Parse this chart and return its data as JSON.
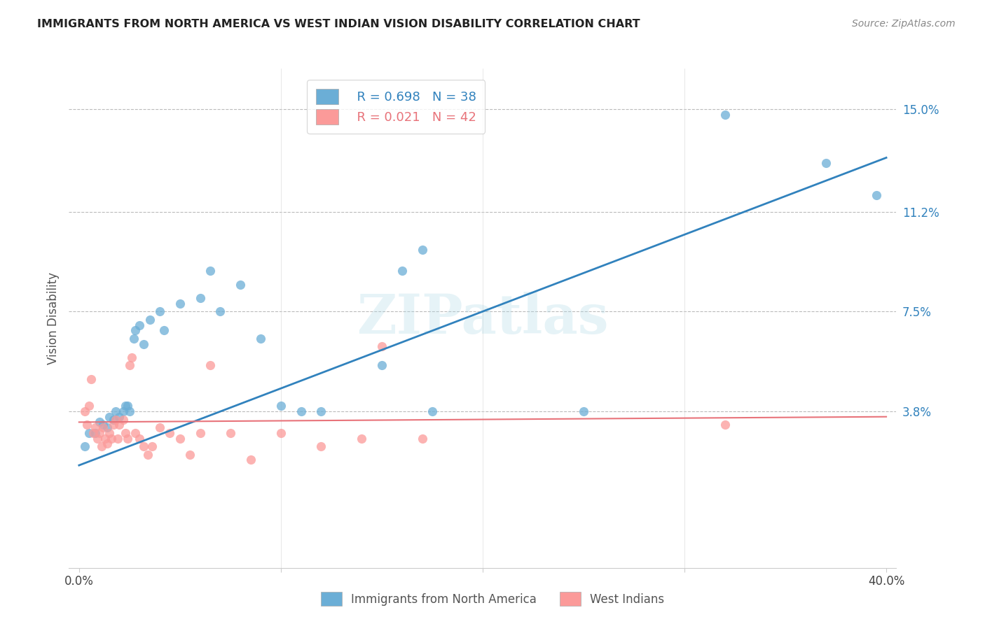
{
  "title": "IMMIGRANTS FROM NORTH AMERICA VS WEST INDIAN VISION DISABILITY CORRELATION CHART",
  "source": "Source: ZipAtlas.com",
  "xlabel_ticks": [
    "0.0%",
    "",
    "",
    "",
    "40.0%"
  ],
  "xlabel_vals": [
    0.0,
    0.1,
    0.2,
    0.3,
    0.4
  ],
  "ylabel_ticks_right": [
    "15.0%",
    "11.2%",
    "7.5%",
    "3.8%"
  ],
  "ylabel_vals_right": [
    0.15,
    0.112,
    0.075,
    0.038
  ],
  "ylabel_label": "Vision Disability",
  "legend_label1": "Immigrants from North America",
  "legend_label2": "West Indians",
  "legend_r1": "R = 0.698",
  "legend_n1": "N = 38",
  "legend_r2": "R = 0.021",
  "legend_n2": "N = 42",
  "color_blue": "#6baed6",
  "color_pink": "#fb9a99",
  "color_blue_line": "#3182bd",
  "color_pink_line": "#e8737a",
  "watermark": "ZIPatlas",
  "blue_x": [
    0.003,
    0.005,
    0.008,
    0.01,
    0.012,
    0.014,
    0.015,
    0.017,
    0.018,
    0.02,
    0.022,
    0.023,
    0.024,
    0.025,
    0.027,
    0.028,
    0.03,
    0.032,
    0.035,
    0.04,
    0.042,
    0.05,
    0.06,
    0.065,
    0.07,
    0.08,
    0.09,
    0.1,
    0.11,
    0.12,
    0.15,
    0.16,
    0.17,
    0.175,
    0.25,
    0.32,
    0.37,
    0.395
  ],
  "blue_y": [
    0.025,
    0.03,
    0.03,
    0.034,
    0.033,
    0.032,
    0.036,
    0.035,
    0.038,
    0.036,
    0.038,
    0.04,
    0.04,
    0.038,
    0.065,
    0.068,
    0.07,
    0.063,
    0.072,
    0.075,
    0.068,
    0.078,
    0.08,
    0.09,
    0.075,
    0.085,
    0.065,
    0.04,
    0.038,
    0.038,
    0.055,
    0.09,
    0.098,
    0.038,
    0.038,
    0.148,
    0.13,
    0.118
  ],
  "pink_x": [
    0.003,
    0.004,
    0.005,
    0.006,
    0.007,
    0.008,
    0.009,
    0.01,
    0.011,
    0.012,
    0.013,
    0.014,
    0.015,
    0.016,
    0.017,
    0.018,
    0.019,
    0.02,
    0.022,
    0.023,
    0.024,
    0.025,
    0.026,
    0.028,
    0.03,
    0.032,
    0.034,
    0.036,
    0.04,
    0.045,
    0.05,
    0.055,
    0.06,
    0.065,
    0.075,
    0.085,
    0.1,
    0.12,
    0.14,
    0.15,
    0.17,
    0.32
  ],
  "pink_y": [
    0.038,
    0.033,
    0.04,
    0.05,
    0.03,
    0.032,
    0.028,
    0.03,
    0.025,
    0.032,
    0.028,
    0.026,
    0.03,
    0.028,
    0.033,
    0.035,
    0.028,
    0.033,
    0.035,
    0.03,
    0.028,
    0.055,
    0.058,
    0.03,
    0.028,
    0.025,
    0.022,
    0.025,
    0.032,
    0.03,
    0.028,
    0.022,
    0.03,
    0.055,
    0.03,
    0.02,
    0.03,
    0.025,
    0.028,
    0.062,
    0.028,
    0.033
  ],
  "xlim": [
    -0.005,
    0.405
  ],
  "ylim": [
    -0.02,
    0.165
  ],
  "blue_line_x": [
    0.0,
    0.4
  ],
  "blue_line_y": [
    0.018,
    0.132
  ],
  "pink_line_x": [
    0.0,
    0.4
  ],
  "pink_line_y": [
    0.034,
    0.036
  ]
}
